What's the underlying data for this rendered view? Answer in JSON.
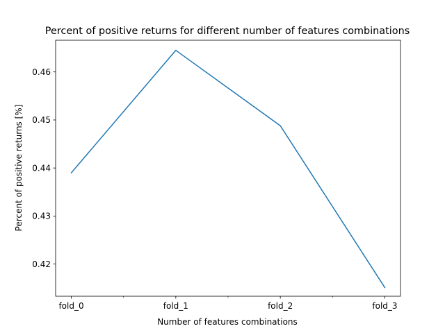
{
  "chart_data": {
    "type": "line",
    "title": "Percent of positive returns for different number of features combinations",
    "xlabel": "Number of features combinations",
    "ylabel": "Percent of positive returns [%]",
    "categories": [
      "fold_0",
      "fold_1",
      "fold_2",
      "fold_3"
    ],
    "x_minor_ticks": [
      0.5,
      1.5,
      2.5
    ],
    "series": [
      {
        "values": [
          0.439,
          0.4645,
          0.4488,
          0.4151
        ],
        "color": "#1f77b4"
      }
    ],
    "xlim": [
      -0.15,
      3.15
    ],
    "ylim": [
      0.4133,
      0.4666
    ],
    "yticks": [
      0.42,
      0.43,
      0.44,
      0.45,
      0.46
    ],
    "ytick_labels": [
      "0.42",
      "0.43",
      "0.44",
      "0.45",
      "0.46"
    ],
    "grid": false,
    "legend": "none"
  }
}
